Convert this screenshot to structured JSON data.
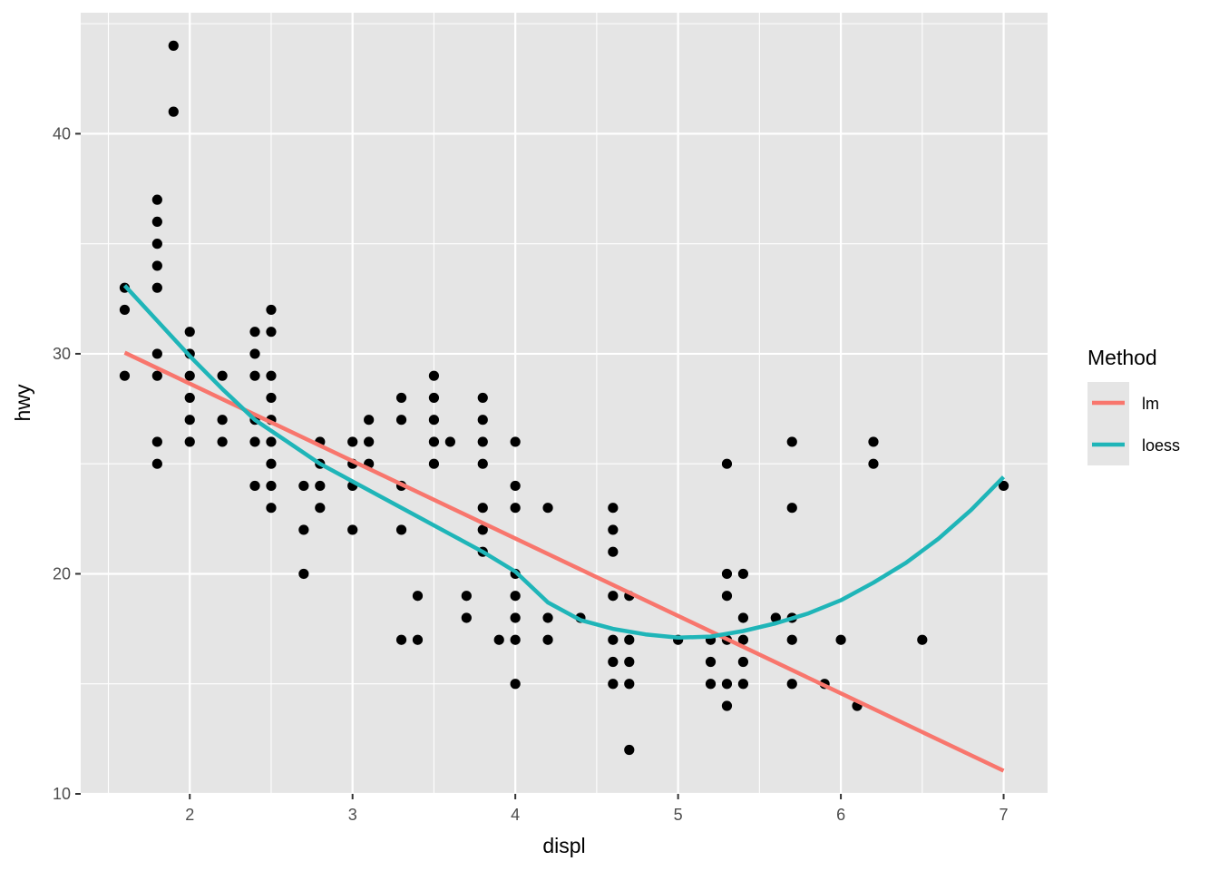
{
  "chart_data": {
    "type": "scatter",
    "xlabel": "displ",
    "ylabel": "hwy",
    "xlim": [
      1.33,
      7.27
    ],
    "ylim": [
      10.0,
      45.5
    ],
    "x_ticks": [
      2,
      3,
      4,
      5,
      6,
      7
    ],
    "y_ticks": [
      10,
      20,
      30,
      40
    ],
    "grid": true,
    "panel_background": "#e5e5e5",
    "grid_color": "#ffffff",
    "point_color": "#000000",
    "legend": {
      "title": "Method",
      "placement": "right",
      "entries": [
        {
          "label": "lm",
          "color": "#f8766d"
        },
        {
          "label": "loess",
          "color": "#1fb5b8"
        }
      ]
    },
    "points": [
      [
        1.6,
        33
      ],
      [
        1.6,
        32
      ],
      [
        1.6,
        29
      ],
      [
        1.8,
        37
      ],
      [
        1.8,
        36
      ],
      [
        1.8,
        35
      ],
      [
        1.8,
        34
      ],
      [
        1.8,
        33
      ],
      [
        1.8,
        30
      ],
      [
        1.8,
        29
      ],
      [
        1.8,
        26
      ],
      [
        1.8,
        25
      ],
      [
        1.9,
        44
      ],
      [
        1.9,
        41
      ],
      [
        2.0,
        31
      ],
      [
        2.0,
        30
      ],
      [
        2.0,
        29
      ],
      [
        2.0,
        28
      ],
      [
        2.0,
        27
      ],
      [
        2.0,
        26
      ],
      [
        2.2,
        29
      ],
      [
        2.2,
        27
      ],
      [
        2.2,
        26
      ],
      [
        2.4,
        31
      ],
      [
        2.4,
        30
      ],
      [
        2.4,
        29
      ],
      [
        2.4,
        27
      ],
      [
        2.4,
        26
      ],
      [
        2.4,
        24
      ],
      [
        2.5,
        32
      ],
      [
        2.5,
        31
      ],
      [
        2.5,
        29
      ],
      [
        2.5,
        28
      ],
      [
        2.5,
        27
      ],
      [
        2.5,
        26
      ],
      [
        2.5,
        25
      ],
      [
        2.5,
        24
      ],
      [
        2.5,
        23
      ],
      [
        2.7,
        24
      ],
      [
        2.7,
        22
      ],
      [
        2.7,
        20
      ],
      [
        2.8,
        26
      ],
      [
        2.8,
        25
      ],
      [
        2.8,
        24
      ],
      [
        2.8,
        23
      ],
      [
        3.0,
        26
      ],
      [
        3.0,
        25
      ],
      [
        3.0,
        24
      ],
      [
        3.0,
        22
      ],
      [
        3.1,
        27
      ],
      [
        3.1,
        26
      ],
      [
        3.1,
        25
      ],
      [
        3.3,
        28
      ],
      [
        3.3,
        27
      ],
      [
        3.3,
        24
      ],
      [
        3.3,
        22
      ],
      [
        3.3,
        17
      ],
      [
        3.4,
        19
      ],
      [
        3.4,
        17
      ],
      [
        3.5,
        29
      ],
      [
        3.5,
        28
      ],
      [
        3.5,
        27
      ],
      [
        3.5,
        26
      ],
      [
        3.5,
        25
      ],
      [
        3.6,
        26
      ],
      [
        3.7,
        19
      ],
      [
        3.7,
        18
      ],
      [
        3.8,
        28
      ],
      [
        3.8,
        27
      ],
      [
        3.8,
        26
      ],
      [
        3.8,
        25
      ],
      [
        3.8,
        23
      ],
      [
        3.8,
        22
      ],
      [
        3.8,
        21
      ],
      [
        3.9,
        17
      ],
      [
        4.0,
        26
      ],
      [
        4.0,
        24
      ],
      [
        4.0,
        23
      ],
      [
        4.0,
        20
      ],
      [
        4.0,
        19
      ],
      [
        4.0,
        18
      ],
      [
        4.0,
        17
      ],
      [
        4.0,
        15
      ],
      [
        4.2,
        23
      ],
      [
        4.2,
        18
      ],
      [
        4.2,
        17
      ],
      [
        4.4,
        18
      ],
      [
        4.6,
        23
      ],
      [
        4.6,
        22
      ],
      [
        4.6,
        21
      ],
      [
        4.6,
        19
      ],
      [
        4.6,
        17
      ],
      [
        4.6,
        16
      ],
      [
        4.6,
        15
      ],
      [
        4.7,
        19
      ],
      [
        4.7,
        17
      ],
      [
        4.7,
        16
      ],
      [
        4.7,
        15
      ],
      [
        4.7,
        12
      ],
      [
        5.0,
        17
      ],
      [
        5.2,
        17
      ],
      [
        5.2,
        16
      ],
      [
        5.2,
        15
      ],
      [
        5.3,
        25
      ],
      [
        5.3,
        20
      ],
      [
        5.3,
        19
      ],
      [
        5.3,
        17
      ],
      [
        5.3,
        15
      ],
      [
        5.3,
        14
      ],
      [
        5.4,
        20
      ],
      [
        5.4,
        18
      ],
      [
        5.4,
        17
      ],
      [
        5.4,
        16
      ],
      [
        5.4,
        15
      ],
      [
        5.6,
        18
      ],
      [
        5.7,
        26
      ],
      [
        5.7,
        23
      ],
      [
        5.7,
        18
      ],
      [
        5.7,
        17
      ],
      [
        5.7,
        15
      ],
      [
        5.9,
        15
      ],
      [
        6.0,
        17
      ],
      [
        6.1,
        14
      ],
      [
        6.2,
        26
      ],
      [
        6.2,
        25
      ],
      [
        6.5,
        17
      ],
      [
        7.0,
        24
      ]
    ],
    "series": [
      {
        "name": "lm",
        "color": "#f8766d",
        "x": [
          1.6,
          7.0
        ],
        "y": [
          30.05,
          11.05
        ]
      },
      {
        "name": "loess",
        "color": "#1fb5b8",
        "x": [
          1.6,
          1.8,
          2.0,
          2.2,
          2.4,
          2.6,
          2.8,
          3.0,
          3.2,
          3.4,
          3.6,
          3.8,
          4.0,
          4.2,
          4.4,
          4.6,
          4.8,
          5.0,
          5.2,
          5.4,
          5.6,
          5.8,
          6.0,
          6.2,
          6.4,
          6.6,
          6.8,
          7.0
        ],
        "y": [
          33.1,
          31.5,
          29.9,
          28.4,
          27.0,
          26.0,
          25.0,
          24.2,
          23.4,
          22.6,
          21.8,
          21.0,
          20.1,
          18.7,
          17.9,
          17.5,
          17.25,
          17.1,
          17.15,
          17.4,
          17.75,
          18.2,
          18.8,
          19.6,
          20.5,
          21.6,
          22.9,
          24.4
        ]
      }
    ]
  }
}
